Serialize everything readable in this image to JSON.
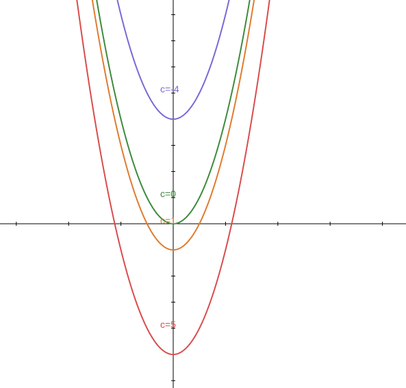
{
  "chart_data": {
    "type": "line",
    "title": "",
    "xlabel": "",
    "ylabel": "",
    "xlim": [
      -6.6,
      8.8
    ],
    "ylim": [
      -6.3,
      8.5
    ],
    "x_ticks": [
      -6,
      -4,
      -2,
      0,
      2,
      4,
      6,
      8
    ],
    "y_ticks": [
      -6,
      -5,
      -4,
      -3,
      -2,
      -1,
      1,
      2,
      3,
      4,
      5,
      6,
      7,
      8
    ],
    "grid": false,
    "legend": "none",
    "function": "y = x^2 - c",
    "series": [
      {
        "name": "c=-4",
        "c": -4,
        "vertex": [
          0,
          4
        ],
        "color": "#7b68d6"
      },
      {
        "name": "c=0",
        "c": 0,
        "vertex": [
          0,
          0
        ],
        "color": "#3d8a3d"
      },
      {
        "name": "c=1",
        "c": 1,
        "vertex": [
          0,
          -1
        ],
        "color": "#e07b2e"
      },
      {
        "name": "c=5",
        "c": 5,
        "vertex": [
          0,
          -5
        ],
        "color": "#d94c4c"
      }
    ]
  }
}
